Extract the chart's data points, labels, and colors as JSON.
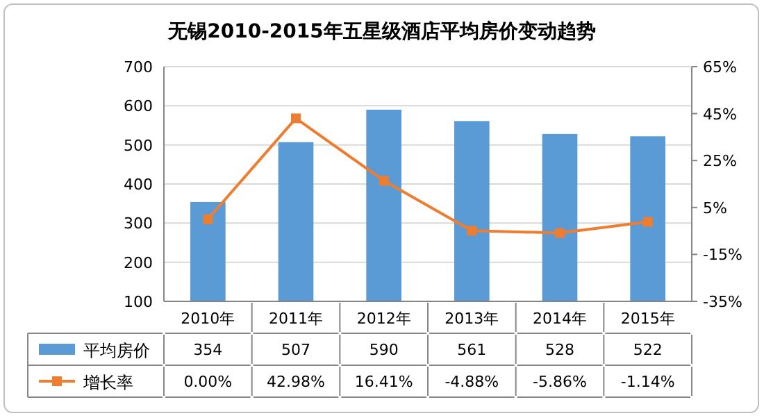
{
  "chart_data": {
    "type": "bar",
    "title": "无锡2010-2015年五星级酒店平均房价变动趋势",
    "categories": [
      "2010年",
      "2011年",
      "2012年",
      "2013年",
      "2014年",
      "2015年"
    ],
    "series": [
      {
        "name": "平均房价",
        "color": "#5b9bd5",
        "values": [
          354,
          507,
          590,
          561,
          528,
          522
        ],
        "value_labels": [
          "354",
          "507",
          "590",
          "561",
          "528",
          "522"
        ]
      },
      {
        "name": "增长率",
        "type": "line",
        "axis": "y2",
        "color": "#ed7d31",
        "marker": "square",
        "values": [
          0.0,
          42.98,
          16.41,
          -4.88,
          -5.86,
          -1.14
        ],
        "value_labels": [
          "0.00%",
          "42.98%",
          "16.41%",
          "-4.88%",
          "-5.86%",
          "-1.14%"
        ]
      }
    ],
    "ylim": [
      100,
      700
    ],
    "yticks": [
      100,
      200,
      300,
      400,
      500,
      600,
      700
    ],
    "y2lim": [
      -35,
      65
    ],
    "y2ticks": [
      {
        "value": -35,
        "label": "-35%"
      },
      {
        "value": -15,
        "label": "-15%"
      },
      {
        "value": 5,
        "label": "5%"
      },
      {
        "value": 25,
        "label": "25%"
      },
      {
        "value": 45,
        "label": "45%"
      },
      {
        "value": 65,
        "label": "65%"
      }
    ],
    "grid": "y",
    "legend": "bottom"
  }
}
